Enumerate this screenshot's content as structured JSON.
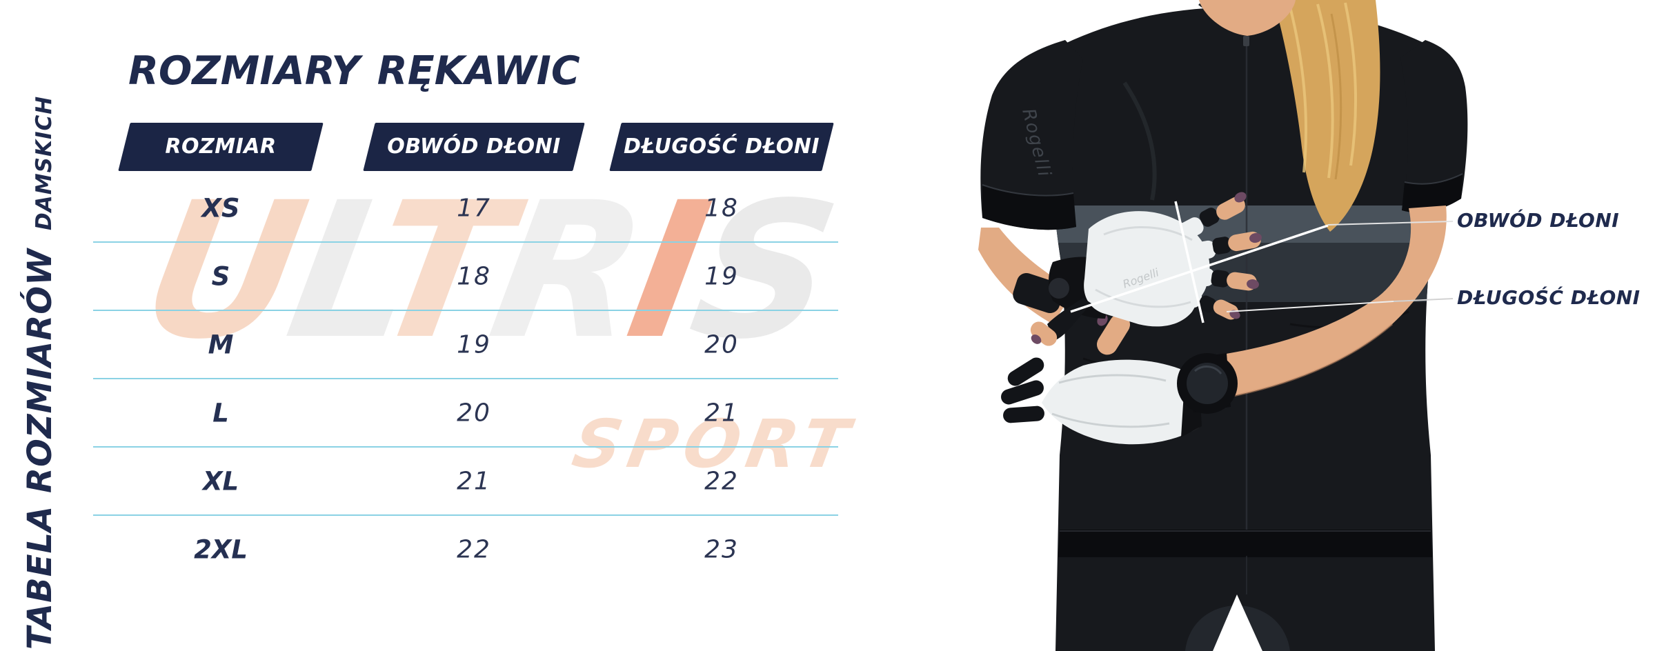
{
  "title": {
    "part1": "ROZMIARY",
    "part2": "RĘKAWIC"
  },
  "side_label": {
    "main": "TABELA ROZMIARÓW",
    "sub": "DAMSKICH"
  },
  "table": {
    "headers": [
      "ROZMIAR",
      "OBWÓD DŁONI",
      "DŁUGOŚĆ DŁONI"
    ],
    "rows": [
      {
        "size": "XS",
        "obwod": "17",
        "dlugosc": "18"
      },
      {
        "size": "S",
        "obwod": "18",
        "dlugosc": "19"
      },
      {
        "size": "M",
        "obwod": "19",
        "dlugosc": "20"
      },
      {
        "size": "L",
        "obwod": "20",
        "dlugosc": "21"
      },
      {
        "size": "XL",
        "obwod": "21",
        "dlugosc": "22"
      },
      {
        "size": "2XL",
        "obwod": "22",
        "dlugosc": "23"
      }
    ]
  },
  "callouts": {
    "circumference": "OBWÓD DŁONI",
    "length": "DŁUGOŚĆ DŁONI"
  },
  "watermark": {
    "letters": [
      {
        "ch": "U",
        "color": "#f7d8c5"
      },
      {
        "ch": "L",
        "color": "#ededed"
      },
      {
        "ch": "T",
        "color": "#f8dccb"
      },
      {
        "ch": "R",
        "color": "#efefef"
      },
      {
        "ch": "I",
        "color": "#f3b096"
      },
      {
        "ch": "S",
        "color": "#eaeaea"
      }
    ],
    "sub": "SPORT"
  },
  "photo": {
    "sleeve_logo": "Rogelli",
    "glove_logo": "Rogelli"
  },
  "chart_data": {
    "type": "table",
    "title": "ROZMIARY RĘKAWIC",
    "subtitle": "TABELA ROZMIARÓW DAMSKICH",
    "columns": [
      "ROZMIAR",
      "OBWÓD DŁONI",
      "DŁUGOŚĆ DŁONI"
    ],
    "rows": [
      [
        "XS",
        17,
        18
      ],
      [
        "S",
        18,
        19
      ],
      [
        "M",
        19,
        20
      ],
      [
        "L",
        20,
        21
      ],
      [
        "XL",
        21,
        22
      ],
      [
        "2XL",
        22,
        23
      ]
    ]
  },
  "colors": {
    "navy": "#1f2a4d",
    "header_bg": "#1b2545",
    "header_text": "#ffffff",
    "divider": "#8ad2e4",
    "leader_gray": "#d2d2d2",
    "watermark_peach": "#f8dccb",
    "skin": "#e2ab84",
    "skin_shadow": "#c9906a",
    "hair": "#d5a55c",
    "jersey": "#17191d",
    "stripe_light": "#49525b",
    "stripe_dark": "#2e343b",
    "glove": "#edf0f1",
    "nail": "#6d4a63"
  }
}
